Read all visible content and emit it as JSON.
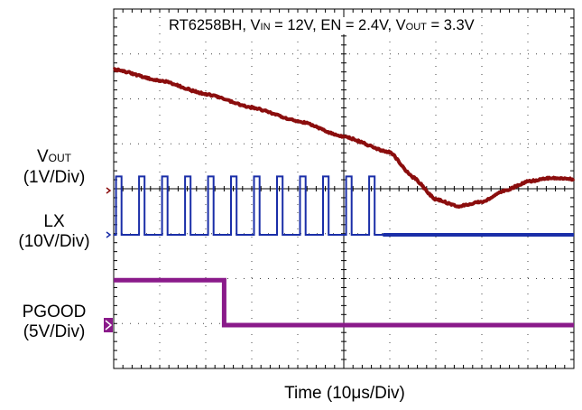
{
  "chart_data": {
    "type": "line",
    "title_parts": {
      "part": "RT6258BH, ",
      "vin_main": "V",
      "vin_sub": "IN",
      "vin_val": " = 12V, EN = 2.4V, ",
      "vout_main": "V",
      "vout_sub": "OUT",
      "vout_val": " = 3.3V"
    },
    "xlabel": "Time (10μs/Div)",
    "x_div_unit": "10μs/Div",
    "grid": "dotted 10x8 divisions",
    "colors": {
      "vout": "#8b0d0d",
      "lx": "#1a2ea8",
      "pgood": "#8a1a8a"
    },
    "channels": [
      {
        "key": "vout",
        "name_main": "V",
        "name_sub": "OUT",
        "scale": "(1V/Div)"
      },
      {
        "key": "lx",
        "name": "LX",
        "scale": "(10V/Div)"
      },
      {
        "key": "pgood",
        "name": "PGOOD",
        "scale": "(5V/Div)"
      }
    ],
    "series": [
      {
        "channel": "vout",
        "x_div": [
          0,
          1,
          2,
          3,
          4,
          5,
          6,
          6.5,
          7,
          7.5,
          8,
          8.5,
          9,
          9.5,
          10
        ],
        "y_div_from_marker": [
          2.7,
          2.45,
          2.15,
          1.85,
          1.55,
          1.2,
          0.85,
          0.3,
          -0.2,
          -0.35,
          -0.25,
          0.0,
          0.2,
          0.28,
          0.25
        ]
      },
      {
        "channel": "lx",
        "switching_period_div": 0.5,
        "switching_stops_div": 5.85,
        "high_level_div": 1.3,
        "low_level_div": 0
      },
      {
        "channel": "pgood",
        "high_level_div": 1.0,
        "low_level_div": 0,
        "falling_edge_div": 2.4
      }
    ]
  }
}
